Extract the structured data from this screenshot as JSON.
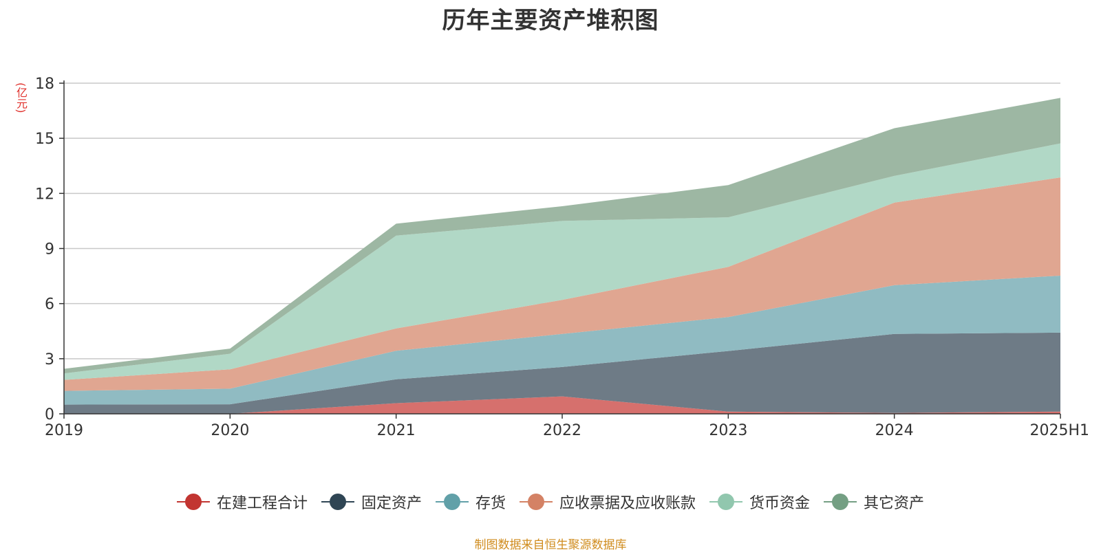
{
  "title": "历年主要资产堆积图",
  "unit_label": "(亿元)",
  "source_note": "制图数据来自恒生聚源数据库",
  "chart_data": {
    "type": "area",
    "stacked": true,
    "title": "历年主要资产堆积图",
    "ylabel": "(亿元)",
    "ylim": [
      0,
      18
    ],
    "yticks": [
      0,
      3,
      6,
      9,
      12,
      15,
      18
    ],
    "grid": true,
    "legend_position": "bottom",
    "x": [
      "2019",
      "2020",
      "2021",
      "2022",
      "2023",
      "2024",
      "2025H1"
    ],
    "series": [
      {
        "name": "在建工程合计",
        "color": "#c23531",
        "fill": "#d6706d",
        "values": [
          0.0,
          0.0,
          0.58,
          0.95,
          0.12,
          0.05,
          0.12
        ]
      },
      {
        "name": "固定资产",
        "color": "#2f4554",
        "fill": "#6e7b86",
        "values": [
          0.5,
          0.52,
          1.3,
          1.6,
          3.3,
          4.3,
          4.3
        ]
      },
      {
        "name": "存货",
        "color": "#61a0a8",
        "fill": "#90bbc2",
        "values": [
          0.75,
          0.85,
          1.55,
          1.8,
          1.85,
          2.65,
          3.1
        ]
      },
      {
        "name": "应收票据及应收账款",
        "color": "#d48265",
        "fill": "#e0a691",
        "values": [
          0.6,
          1.05,
          1.22,
          1.85,
          2.73,
          4.5,
          5.35
        ]
      },
      {
        "name": "货币资金",
        "color": "#91c7ae",
        "fill": "#b1d8c6",
        "values": [
          0.35,
          0.85,
          5.05,
          4.3,
          2.7,
          1.45,
          1.85
        ]
      },
      {
        "name": "其它资产",
        "color": "#749f83",
        "fill": "#9db7a3",
        "values": [
          0.25,
          0.28,
          0.65,
          0.8,
          1.75,
          2.6,
          2.48
        ]
      }
    ]
  }
}
